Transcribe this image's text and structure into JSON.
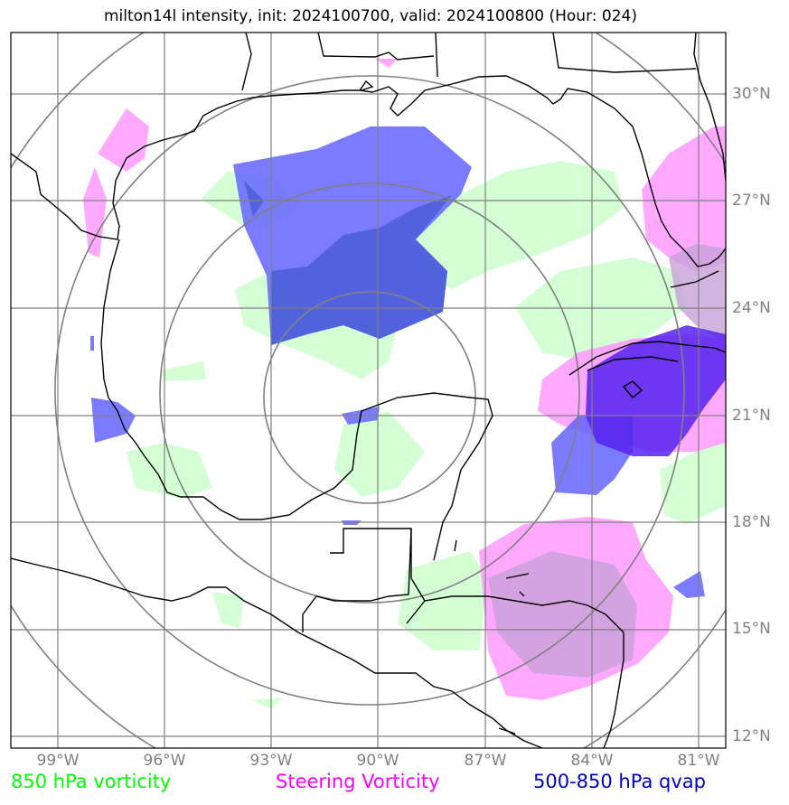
{
  "title": "milton14l intensity, init: 2024100700, valid: 2024100800 (Hour: 024)",
  "lat_labels": [
    "30°N",
    "27°N",
    "24°N",
    "21°N",
    "18°N",
    "15°N",
    "12°N"
  ],
  "lon_labels": [
    "99°W",
    "96°W",
    "93°W",
    "90°W",
    "87°W",
    "84°W",
    "81°W"
  ],
  "legend": [
    {
      "label": "850 hPa vorticity",
      "color": "#00ff00"
    },
    {
      "label": "Steering Vorticity",
      "color": "#ff00ff"
    },
    {
      "label": "500-850 hPa qvap",
      "color": "#0000cc"
    }
  ],
  "colors": {
    "vorticity_850_fill": "#ccffcc",
    "steering_vorticity_fill": "#ff99ff",
    "qvap_fill": "#5555ff",
    "gridlines": "#808080",
    "coastline": "#000000",
    "range_rings": "#808080"
  }
}
